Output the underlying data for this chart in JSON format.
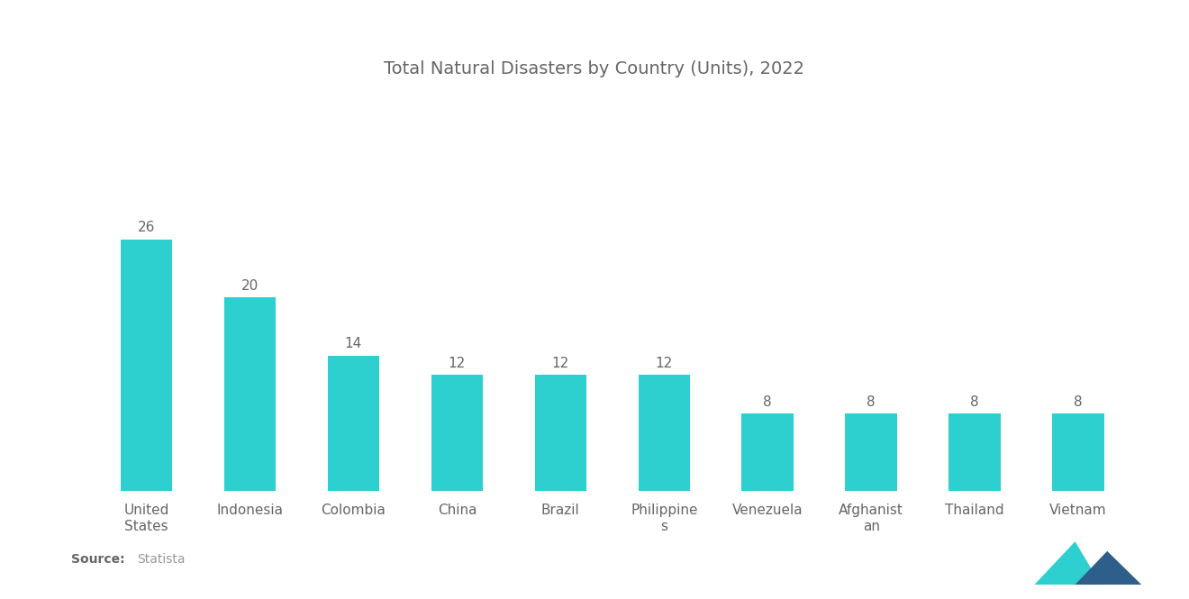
{
  "title": "Total Natural Disasters by Country (Units), 2022",
  "categories": [
    "United\nStates",
    "Indonesia",
    "Colombia",
    "China",
    "Brazil",
    "Philippine\ns",
    "Venezuela",
    "Afghanist\nan",
    "Thailand",
    "Vietnam"
  ],
  "values": [
    26,
    20,
    14,
    12,
    12,
    12,
    8,
    8,
    8,
    8
  ],
  "bar_color": "#2DCFCF",
  "background_color": "#ffffff",
  "title_fontsize": 14,
  "label_fontsize": 11,
  "value_fontsize": 11,
  "source_bold": "Source:",
  "source_normal": "  Statista",
  "ylim": [
    0,
    34
  ],
  "bar_width": 0.5,
  "title_color": "#666666",
  "label_color": "#666666",
  "value_color": "#666666"
}
